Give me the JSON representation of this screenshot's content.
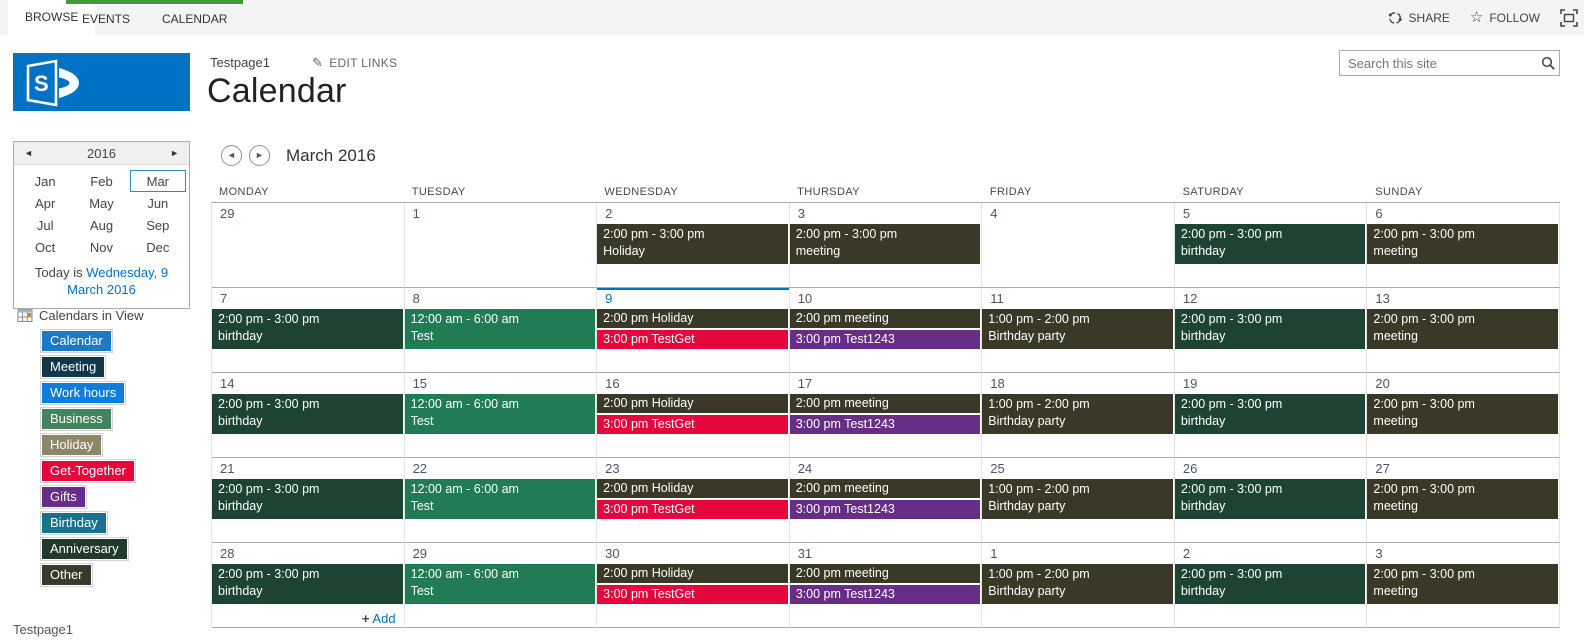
{
  "ribbon": {
    "tabs": {
      "browse": "BROWSE",
      "events": "EVENTS",
      "calendar": "CALENDAR"
    },
    "actions": {
      "share": "SHARE",
      "follow": "FOLLOW"
    }
  },
  "header": {
    "site_link": "Testpage1",
    "edit_links": "EDIT LINKS",
    "page_title": "Calendar",
    "search_placeholder": "Search this site"
  },
  "icons": {
    "prev_arrow": "◄",
    "next_arrow": "►",
    "star": "☆",
    "pencil": "✎",
    "plus": "+"
  },
  "sidebar": {
    "mini_calendar": {
      "year": "2016",
      "months": [
        "Jan",
        "Feb",
        "Mar",
        "Apr",
        "May",
        "Jun",
        "Jul",
        "Aug",
        "Sep",
        "Oct",
        "Nov",
        "Dec"
      ],
      "selected_month": "Mar",
      "today_prefix": "Today is ",
      "today_link": "Wednesday, 9 March 2016"
    },
    "calendars_in_view": {
      "label": "Calendars in View",
      "items": [
        {
          "label": "Calendar",
          "color": "#1A7AC6"
        },
        {
          "label": "Meeting",
          "color": "#11384A"
        },
        {
          "label": "Work hours",
          "color": "#0E7EDC"
        },
        {
          "label": "Business",
          "color": "#41855C"
        },
        {
          "label": "Holiday",
          "color": "#8D8767"
        },
        {
          "label": "Get-Together",
          "color": "#E4063C"
        },
        {
          "label": "Gifts",
          "color": "#682D86"
        },
        {
          "label": "Birthday",
          "color": "#19708F"
        },
        {
          "label": "Anniversary",
          "color": "#213A2B"
        },
        {
          "label": "Other",
          "color": "#3B392B"
        }
      ]
    },
    "footer_link": "Testpage1"
  },
  "colors": {
    "accent": "#0072C6",
    "tab_green": "#3F9C35",
    "event_colors": {
      "olive": "#3A3826",
      "darkgreen": "#1D4432",
      "green": "#217C55",
      "red": "#E4063C",
      "purple": "#682D86"
    }
  },
  "calendar": {
    "title": "March 2016",
    "weekdays": [
      "MONDAY",
      "TUESDAY",
      "WEDNESDAY",
      "THURSDAY",
      "FRIDAY",
      "SATURDAY",
      "SUNDAY"
    ],
    "add_label": "Add",
    "weeks": [
      {
        "days": [
          {
            "num": "29",
            "events": []
          },
          {
            "num": "1",
            "events": []
          },
          {
            "num": "2",
            "events": [
              {
                "time": "2:00 pm - 3:00 pm",
                "title": "Holiday",
                "color": "olive",
                "style": "block"
              }
            ]
          },
          {
            "num": "3",
            "events": [
              {
                "time": "2:00 pm - 3:00 pm",
                "title": "meeting",
                "color": "olive",
                "style": "block"
              }
            ]
          },
          {
            "num": "4",
            "events": []
          },
          {
            "num": "5",
            "events": [
              {
                "time": "2:00 pm - 3:00 pm",
                "title": "birthday",
                "color": "darkgreen",
                "style": "block"
              }
            ]
          },
          {
            "num": "6",
            "events": [
              {
                "time": "2:00 pm - 3:00 pm",
                "title": "meeting",
                "color": "olive",
                "style": "block"
              }
            ]
          }
        ]
      },
      {
        "days": [
          {
            "num": "7",
            "events": [
              {
                "time": "2:00 pm - 3:00 pm",
                "title": "birthday",
                "color": "darkgreen",
                "style": "block"
              }
            ]
          },
          {
            "num": "8",
            "events": [
              {
                "time": "12:00 am - 6:00 am",
                "title": "Test",
                "color": "green",
                "style": "block"
              }
            ]
          },
          {
            "num": "9",
            "today": true,
            "events": [
              {
                "time": "2:00 pm",
                "title": "Holiday",
                "color": "olive",
                "style": "line"
              },
              {
                "time": "3:00 pm",
                "title": "TestGet",
                "color": "red",
                "style": "line"
              }
            ]
          },
          {
            "num": "10",
            "events": [
              {
                "time": "2:00 pm",
                "title": "meeting",
                "color": "olive",
                "style": "line"
              },
              {
                "time": "3:00 pm",
                "title": "Test1243",
                "color": "purple",
                "style": "line"
              }
            ]
          },
          {
            "num": "11",
            "events": [
              {
                "time": "1:00 pm - 2:00 pm",
                "title": "Birthday party",
                "color": "olive",
                "style": "block"
              }
            ]
          },
          {
            "num": "12",
            "events": [
              {
                "time": "2:00 pm - 3:00 pm",
                "title": "birthday",
                "color": "darkgreen",
                "style": "block"
              }
            ]
          },
          {
            "num": "13",
            "events": [
              {
                "time": "2:00 pm - 3:00 pm",
                "title": "meeting",
                "color": "olive",
                "style": "block"
              }
            ]
          }
        ]
      },
      {
        "days": [
          {
            "num": "14",
            "events": [
              {
                "time": "2:00 pm - 3:00 pm",
                "title": "birthday",
                "color": "darkgreen",
                "style": "block"
              }
            ]
          },
          {
            "num": "15",
            "events": [
              {
                "time": "12:00 am - 6:00 am",
                "title": "Test",
                "color": "green",
                "style": "block"
              }
            ]
          },
          {
            "num": "16",
            "events": [
              {
                "time": "2:00 pm",
                "title": "Holiday",
                "color": "olive",
                "style": "line"
              },
              {
                "time": "3:00 pm",
                "title": "TestGet",
                "color": "red",
                "style": "line"
              }
            ]
          },
          {
            "num": "17",
            "events": [
              {
                "time": "2:00 pm",
                "title": "meeting",
                "color": "olive",
                "style": "line"
              },
              {
                "time": "3:00 pm",
                "title": "Test1243",
                "color": "purple",
                "style": "line"
              }
            ]
          },
          {
            "num": "18",
            "events": [
              {
                "time": "1:00 pm - 2:00 pm",
                "title": "Birthday party",
                "color": "olive",
                "style": "block"
              }
            ]
          },
          {
            "num": "19",
            "events": [
              {
                "time": "2:00 pm - 3:00 pm",
                "title": "birthday",
                "color": "darkgreen",
                "style": "block"
              }
            ]
          },
          {
            "num": "20",
            "events": [
              {
                "time": "2:00 pm - 3:00 pm",
                "title": "meeting",
                "color": "olive",
                "style": "block"
              }
            ]
          }
        ]
      },
      {
        "days": [
          {
            "num": "21",
            "events": [
              {
                "time": "2:00 pm - 3:00 pm",
                "title": "birthday",
                "color": "darkgreen",
                "style": "block"
              }
            ]
          },
          {
            "num": "22",
            "events": [
              {
                "time": "12:00 am - 6:00 am",
                "title": "Test",
                "color": "green",
                "style": "block"
              }
            ]
          },
          {
            "num": "23",
            "events": [
              {
                "time": "2:00 pm",
                "title": "Holiday",
                "color": "olive",
                "style": "line"
              },
              {
                "time": "3:00 pm",
                "title": "TestGet",
                "color": "red",
                "style": "line"
              }
            ]
          },
          {
            "num": "24",
            "events": [
              {
                "time": "2:00 pm",
                "title": "meeting",
                "color": "olive",
                "style": "line"
              },
              {
                "time": "3:00 pm",
                "title": "Test1243",
                "color": "purple",
                "style": "line"
              }
            ]
          },
          {
            "num": "25",
            "events": [
              {
                "time": "1:00 pm - 2:00 pm",
                "title": "Birthday party",
                "color": "olive",
                "style": "block"
              }
            ]
          },
          {
            "num": "26",
            "events": [
              {
                "time": "2:00 pm - 3:00 pm",
                "title": "birthday",
                "color": "darkgreen",
                "style": "block"
              }
            ]
          },
          {
            "num": "27",
            "events": [
              {
                "time": "2:00 pm - 3:00 pm",
                "title": "meeting",
                "color": "olive",
                "style": "block"
              }
            ]
          }
        ]
      },
      {
        "days": [
          {
            "num": "28",
            "add_link": true,
            "events": [
              {
                "time": "2:00 pm - 3:00 pm",
                "title": "birthday",
                "color": "darkgreen",
                "style": "block"
              }
            ]
          },
          {
            "num": "29",
            "events": [
              {
                "time": "12:00 am - 6:00 am",
                "title": "Test",
                "color": "green",
                "style": "block"
              }
            ]
          },
          {
            "num": "30",
            "events": [
              {
                "time": "2:00 pm",
                "title": "Holiday",
                "color": "olive",
                "style": "line"
              },
              {
                "time": "3:00 pm",
                "title": "TestGet",
                "color": "red",
                "style": "line"
              }
            ]
          },
          {
            "num": "31",
            "events": [
              {
                "time": "2:00 pm",
                "title": "meeting",
                "color": "olive",
                "style": "line"
              },
              {
                "time": "3:00 pm",
                "title": "Test1243",
                "color": "purple",
                "style": "line"
              }
            ]
          },
          {
            "num": "1",
            "events": [
              {
                "time": "1:00 pm - 2:00 pm",
                "title": "Birthday party",
                "color": "olive",
                "style": "block"
              }
            ]
          },
          {
            "num": "2",
            "events": [
              {
                "time": "2:00 pm - 3:00 pm",
                "title": "birthday",
                "color": "darkgreen",
                "style": "block"
              }
            ]
          },
          {
            "num": "3",
            "events": [
              {
                "time": "2:00 pm - 3:00 pm",
                "title": "meeting",
                "color": "olive",
                "style": "block"
              }
            ]
          }
        ]
      }
    ]
  }
}
